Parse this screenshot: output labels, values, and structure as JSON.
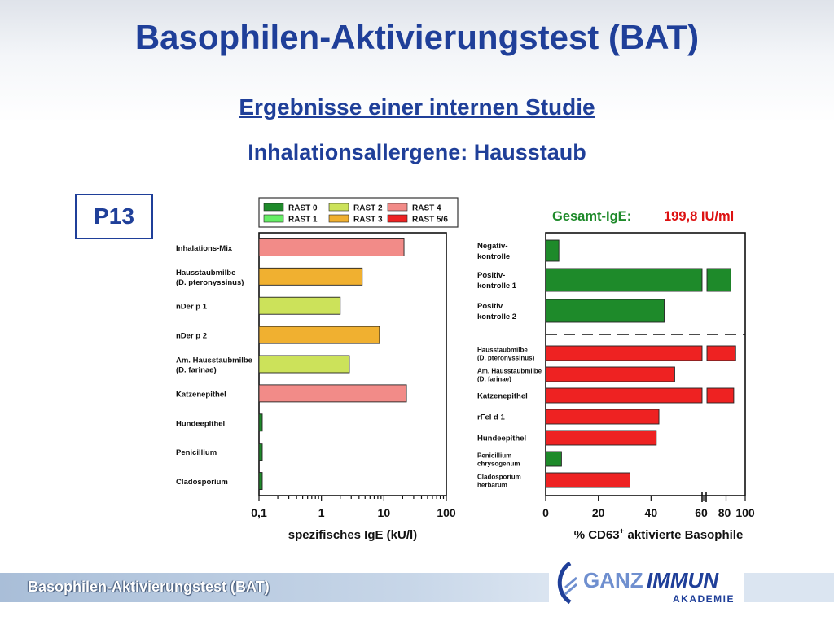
{
  "header": {
    "title": "Basophilen-Aktivierungstest (BAT)",
    "subtitle1": "Ergebnisse einer internen Studie",
    "subtitle2": "Inhalationsallergene: Hausstaub",
    "patient": "P13"
  },
  "legend_items": [
    {
      "label": "RAST 0",
      "color": "#1e8a2a"
    },
    {
      "label": "RAST 1",
      "color": "#66ee66"
    },
    {
      "label": "RAST 2",
      "color": "#cce25a"
    },
    {
      "label": "RAST 3",
      "color": "#f0b030"
    },
    {
      "label": "RAST 4",
      "color": "#f28b88"
    },
    {
      "label": "RAST 5/6",
      "color": "#ee2222"
    }
  ],
  "total_ige": {
    "label": "Gesamt-IgE:",
    "value": "199,8 IU/ml"
  },
  "chart_data": [
    {
      "type": "bar",
      "orientation": "horizontal",
      "xscale": "log",
      "xlim": [
        0.1,
        100
      ],
      "xticks": [
        "0,1",
        "1",
        "10",
        "100"
      ],
      "xlabel": "spezifisches IgE (kU/l)",
      "categories": [
        [
          "Inhalations-Mix"
        ],
        [
          "Hausstaubmilbe",
          "(D. pteronyssinus)"
        ],
        [
          "nDer p 1"
        ],
        [
          "nDer p 2"
        ],
        [
          "Am. Hausstaubmilbe",
          "(D. farinae)"
        ],
        [
          "Katzenepithel"
        ],
        [
          "Hundeepithel"
        ],
        [
          "Penicillium"
        ],
        [
          "Cladosporium"
        ]
      ],
      "values": [
        21,
        4.5,
        2.0,
        8.5,
        2.8,
        23,
        0.1,
        0.1,
        0.1
      ],
      "rast_class": [
        "RAST 4",
        "RAST 3",
        "RAST 2",
        "RAST 3",
        "RAST 2",
        "RAST 4",
        "RAST 0",
        "RAST 0",
        "RAST 0"
      ]
    },
    {
      "type": "bar",
      "orientation": "horizontal",
      "xscale": "broken",
      "xlim": [
        0,
        100
      ],
      "xticks": [
        "0",
        "20",
        "40",
        "60",
        "80",
        "100"
      ],
      "xlabel": "% CD63",
      "xlabel_sup": "+",
      "xlabel_rest": " aktivierte Basophile",
      "categories": [
        [
          "Negativ-",
          "kontrolle"
        ],
        [
          "Positiv-",
          "kontrolle 1"
        ],
        [
          "Positiv",
          "kontrolle 2"
        ],
        [
          "Hausstaubmilbe",
          "(D. pteronyssinus)"
        ],
        [
          "Am. Hausstaubmilbe",
          "(D. farinae)"
        ],
        [
          "Katzenepithel"
        ],
        [
          "rFel d 1"
        ],
        [
          "Hundeepithel"
        ],
        [
          "Penicillium",
          "chrysogenum"
        ],
        [
          "Cladosporium",
          "herbarum"
        ]
      ],
      "values": [
        5,
        85,
        45,
        90,
        49,
        88,
        43,
        42,
        6,
        32
      ],
      "colors": [
        "#1e8a2a",
        "#1e8a2a",
        "#1e8a2a",
        "#ee2222",
        "#ee2222",
        "#ee2222",
        "#ee2222",
        "#ee2222",
        "#1e8a2a",
        "#ee2222"
      ]
    }
  ],
  "footer": {
    "text": "Basophilen-Aktivierungstest (BAT)"
  },
  "logo": {
    "brand_part1": "GANZ",
    "brand_part2": "IMMUN",
    "tagline": "AKADEMIE"
  }
}
